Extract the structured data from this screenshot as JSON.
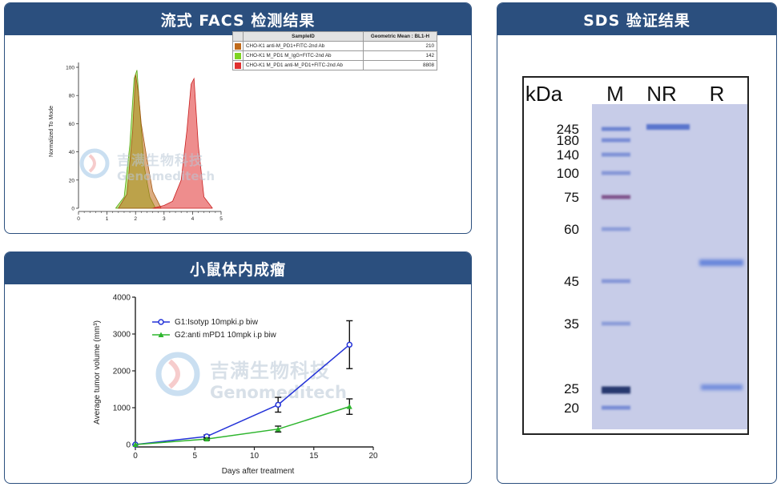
{
  "panels": {
    "facs": {
      "title": "流式 FACS 检测结果",
      "ylabel": "Normalized To Mode",
      "y_ticks": [
        "100",
        "80",
        "60",
        "40",
        "20",
        "0"
      ],
      "x_ticks": [
        "0",
        "1",
        "2",
        "3",
        "4",
        "5"
      ],
      "table": {
        "headers": [
          "SampleID",
          "Geometric Mean : BL1-H"
        ],
        "rows": [
          {
            "label": "CHO-K1 anti-M_PD1+FITC-2nd Ab",
            "value": "210",
            "color": "#c06a1a"
          },
          {
            "label": "CHO-K1 M_PD1 M_IgG+FITC-2nd Ab",
            "value": "142",
            "color": "#7ed321"
          },
          {
            "label": "CHO-K1 M_PD1 anti-M_PD1+FITC-2nd Ab",
            "value": "8808",
            "color": "#e03030"
          }
        ]
      }
    },
    "tumor": {
      "title": "小鼠体内成瘤",
      "ylabel": "Average tumor volume (mm³)",
      "xlabel": "Days after treatment",
      "y_ticks": [
        "4000",
        "3000",
        "2000",
        "1000",
        "0"
      ],
      "x_ticks": [
        "0",
        "5",
        "10",
        "15",
        "20"
      ],
      "legend": [
        {
          "label": "G1:Isotyp 10mpki.p biw",
          "color": "#2332d8"
        },
        {
          "label": "G2:anti mPD1 10mpk i.p biw",
          "color": "#2db52d"
        }
      ]
    },
    "sds": {
      "title": "SDS 验证结果",
      "lane_labels": [
        "kDa",
        "M",
        "NR",
        "R"
      ],
      "markers": [
        "245",
        "180",
        "140",
        "100",
        "75",
        "60",
        "45",
        "35",
        "25",
        "20"
      ]
    }
  },
  "watermark": {
    "cn": "吉满生物科技",
    "en": "Genomeditech"
  },
  "chart_data": [
    {
      "type": "area",
      "ylim": [
        0,
        100
      ],
      "xlim": [
        0,
        5
      ],
      "series": [
        {
          "name": "CHO-K1 anti-M_PD1+FITC-2nd Ab",
          "x": [
            1.4,
            1.7,
            1.9,
            2.0,
            2.1,
            2.2,
            2.4,
            2.6,
            2.9
          ],
          "y": [
            0,
            10,
            55,
            95,
            82,
            60,
            35,
            12,
            0
          ]
        },
        {
          "name": "CHO-K1 M_PD1 M_IgG+FITC-2nd Ab",
          "x": [
            1.3,
            1.6,
            1.8,
            1.95,
            2.05,
            2.15,
            2.3,
            2.5,
            2.7
          ],
          "y": [
            0,
            8,
            45,
            92,
            98,
            70,
            30,
            8,
            0
          ]
        },
        {
          "name": "CHO-K1 M_PD1 anti-M_PD1+FITC-2nd Ab",
          "x": [
            2.6,
            3.0,
            3.3,
            3.6,
            3.8,
            3.95,
            4.05,
            4.2,
            4.4,
            4.7
          ],
          "y": [
            0,
            2,
            5,
            20,
            55,
            88,
            92,
            45,
            8,
            0
          ]
        }
      ]
    },
    {
      "type": "line",
      "xlim": [
        0,
        20
      ],
      "ylim": [
        0,
        4000
      ],
      "series": [
        {
          "name": "G1:Isotyp 10mpki.p biw",
          "x": [
            0,
            6,
            12,
            18
          ],
          "y": [
            0,
            220,
            1080,
            2710
          ],
          "err": [
            0,
            40,
            200,
            650
          ]
        },
        {
          "name": "G2:anti mPD1 10mpk i.p biw",
          "x": [
            0,
            6,
            12,
            18
          ],
          "y": [
            0,
            150,
            420,
            1030
          ],
          "err": [
            0,
            30,
            80,
            210
          ]
        }
      ]
    }
  ]
}
